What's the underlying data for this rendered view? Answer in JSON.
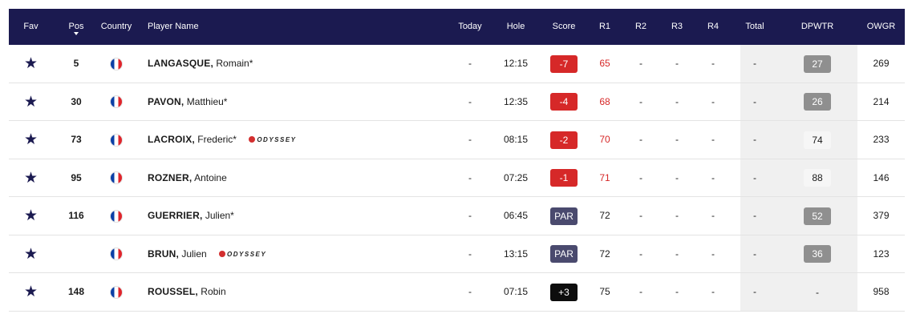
{
  "header": {
    "fav": "Fav",
    "pos": "Pos",
    "country": "Country",
    "player_name": "Player Name",
    "today": "Today",
    "hole": "Hole",
    "score": "Score",
    "r1": "R1",
    "r2": "R2",
    "r3": "R3",
    "r4": "R4",
    "total": "Total",
    "dpwtr": "DPWTR",
    "owgr": "OWGR"
  },
  "colors": {
    "header_bg": "#1b1a50",
    "under_par": "#d62828",
    "par": "#4a4a6e",
    "over_par": "#0d0d0d"
  },
  "rows": [
    {
      "pos": "5",
      "last": "LANGASQUE,",
      "first": "Romain*",
      "sponsor": "",
      "today": "-",
      "hole": "12:15",
      "score": "-7",
      "score_type": "under",
      "r1": "65",
      "r2": "-",
      "r3": "-",
      "r4": "-",
      "total": "-",
      "dpwtr": "27",
      "dpwtr_style": "gray",
      "owgr": "269"
    },
    {
      "pos": "30",
      "last": "PAVON,",
      "first": "Matthieu*",
      "sponsor": "",
      "today": "-",
      "hole": "12:35",
      "score": "-4",
      "score_type": "under",
      "r1": "68",
      "r2": "-",
      "r3": "-",
      "r4": "-",
      "total": "-",
      "dpwtr": "26",
      "dpwtr_style": "gray",
      "owgr": "214"
    },
    {
      "pos": "73",
      "last": "LACROIX,",
      "first": "Frederic*",
      "sponsor": "ODYSSEY",
      "today": "-",
      "hole": "08:15",
      "score": "-2",
      "score_type": "under",
      "r1": "70",
      "r2": "-",
      "r3": "-",
      "r4": "-",
      "total": "-",
      "dpwtr": "74",
      "dpwtr_style": "plain",
      "owgr": "233"
    },
    {
      "pos": "95",
      "last": "ROZNER,",
      "first": "Antoine",
      "sponsor": "",
      "today": "-",
      "hole": "07:25",
      "score": "-1",
      "score_type": "under",
      "r1": "71",
      "r2": "-",
      "r3": "-",
      "r4": "-",
      "total": "-",
      "dpwtr": "88",
      "dpwtr_style": "plain",
      "owgr": "146"
    },
    {
      "pos": "116",
      "last": "GUERRIER,",
      "first": "Julien*",
      "sponsor": "",
      "today": "-",
      "hole": "06:45",
      "score": "PAR",
      "score_type": "par",
      "r1": "72",
      "r2": "-",
      "r3": "-",
      "r4": "-",
      "total": "-",
      "dpwtr": "52",
      "dpwtr_style": "gray",
      "owgr": "379"
    },
    {
      "pos": "",
      "last": "BRUN,",
      "first": "Julien",
      "sponsor": "ODYSSEY",
      "today": "-",
      "hole": "13:15",
      "score": "PAR",
      "score_type": "par",
      "r1": "72",
      "r2": "-",
      "r3": "-",
      "r4": "-",
      "total": "-",
      "dpwtr": "36",
      "dpwtr_style": "gray",
      "owgr": "123"
    },
    {
      "pos": "148",
      "last": "ROUSSEL,",
      "first": "Robin",
      "sponsor": "",
      "today": "-",
      "hole": "07:15",
      "score": "+3",
      "score_type": "over",
      "r1": "75",
      "r2": "-",
      "r3": "-",
      "r4": "-",
      "total": "-",
      "dpwtr": "-",
      "dpwtr_style": "none",
      "owgr": "958"
    }
  ]
}
